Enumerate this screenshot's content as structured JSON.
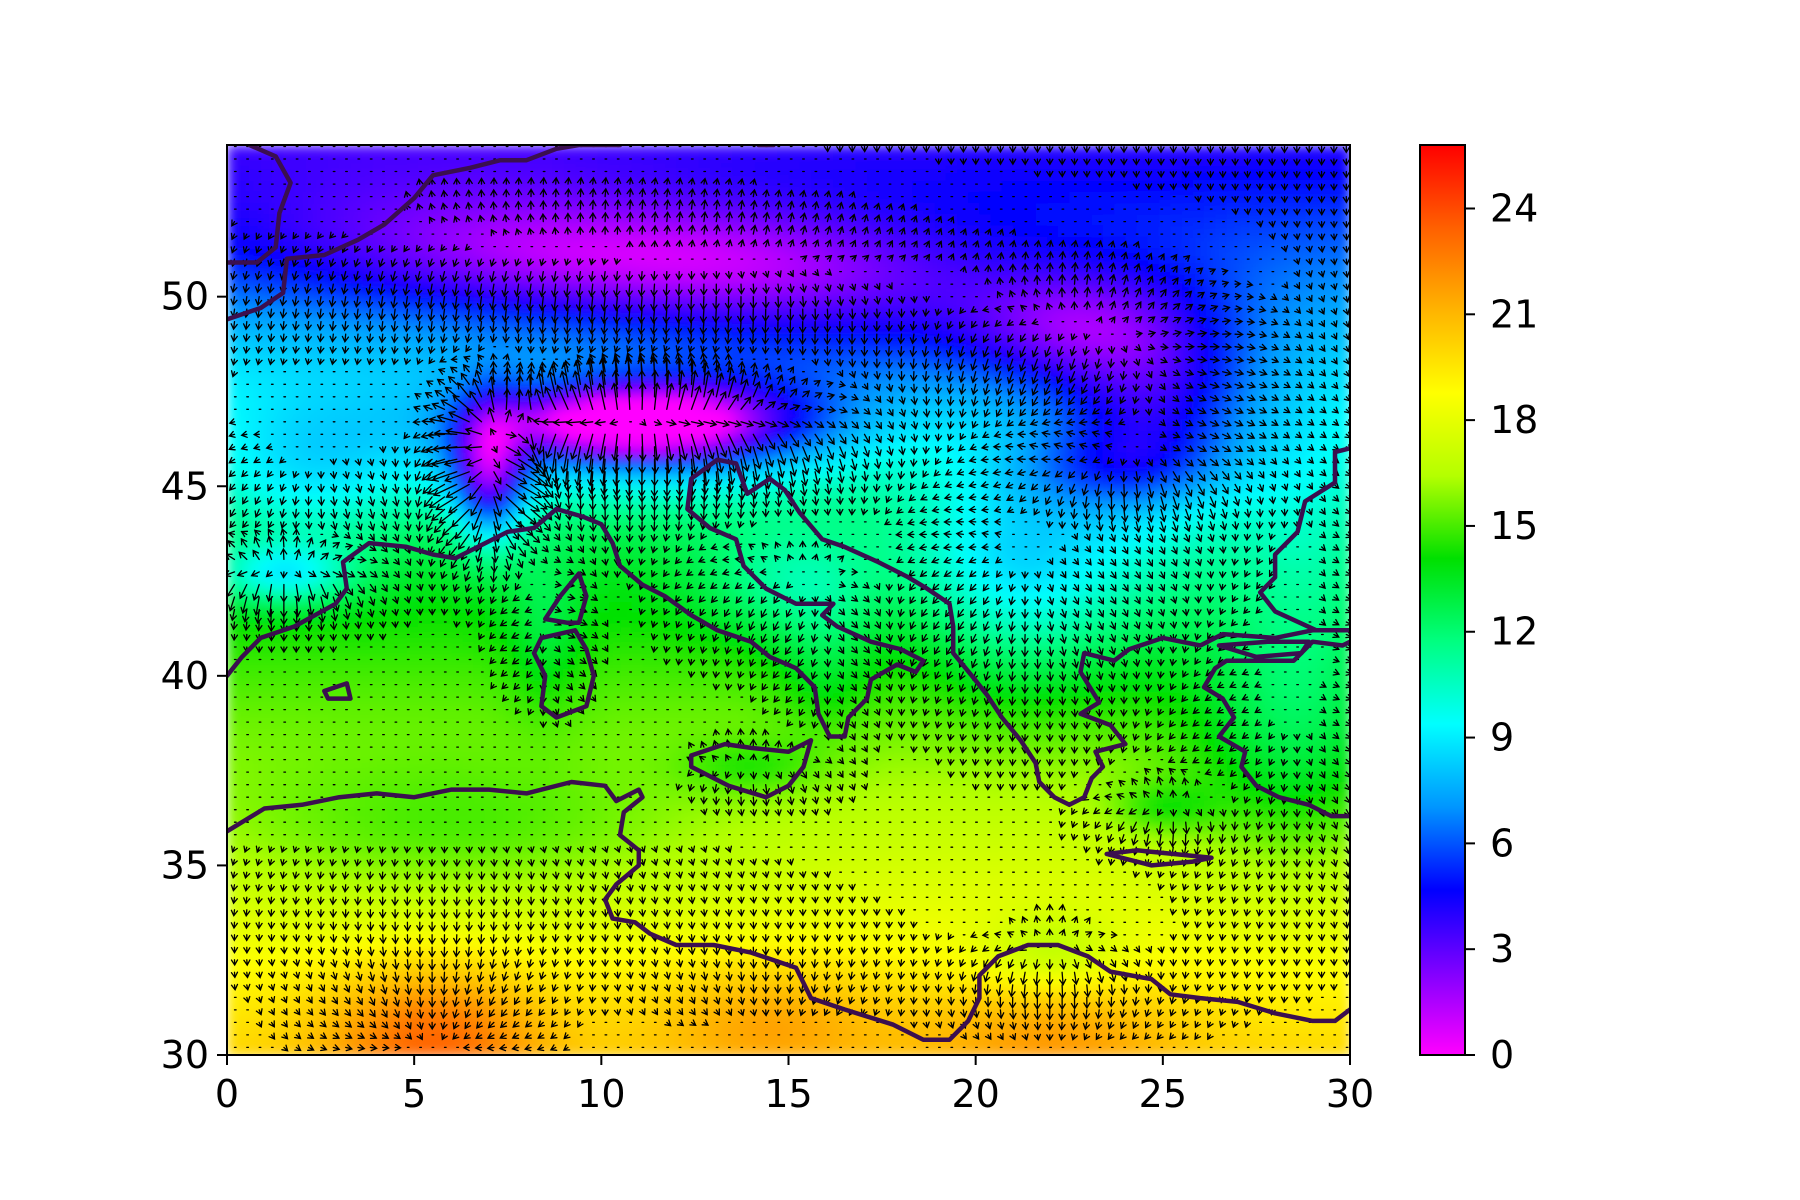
{
  "chart_data": {
    "type": "heatmap",
    "title": "",
    "xlabel": "",
    "ylabel": "",
    "xlim": [
      0,
      30
    ],
    "ylim": [
      30,
      54
    ],
    "x_ticks": [
      "0",
      "5",
      "10",
      "15",
      "20",
      "25",
      "30"
    ],
    "y_ticks": [
      "30",
      "35",
      "40",
      "45",
      "50"
    ],
    "colorbar": {
      "range": [
        0,
        25.8
      ],
      "ticks": [
        "0",
        "3",
        "6",
        "9",
        "12",
        "15",
        "18",
        "21",
        "24"
      ],
      "colormap": [
        "#ff00ff",
        "#8000ff",
        "#0000ff",
        "#0096ff",
        "#00ffff",
        "#00ff80",
        "#00e000",
        "#b4ff00",
        "#ffff00",
        "#ffb400",
        "#ff6000",
        "#ff0000"
      ]
    },
    "overlays": [
      "filled temperature field",
      "wind vector arrows (quiver)",
      "coastline contours"
    ],
    "coastline_color": "#3b0f4f",
    "grid": false
  }
}
